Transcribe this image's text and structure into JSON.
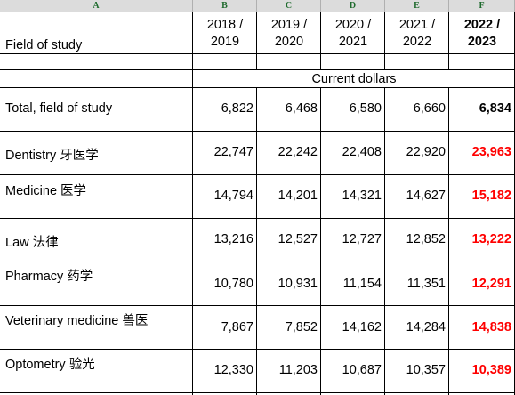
{
  "column_headers": [
    "A",
    "B",
    "C",
    "D",
    "E",
    "F"
  ],
  "field_header": "Field of study",
  "years": [
    {
      "top": "2018 /",
      "bottom": "2019"
    },
    {
      "top": "2019 /",
      "bottom": "2020"
    },
    {
      "top": "2020 /",
      "bottom": "2021"
    },
    {
      "top": "2021 /",
      "bottom": "2022"
    },
    {
      "top": "2022 /",
      "bottom": "2023"
    }
  ],
  "unit_label": "Current dollars",
  "rows": [
    {
      "label": "Total, field of study",
      "values": [
        "6,822",
        "6,468",
        "6,580",
        "6,660",
        "6,834"
      ]
    },
    {
      "label": "Dentistry 牙医学",
      "values": [
        "22,747",
        "22,242",
        "22,408",
        "22,920",
        "23,963"
      ]
    },
    {
      "label": "Medicine 医学",
      "values": [
        "14,794",
        "14,201",
        "14,321",
        "14,627",
        "15,182"
      ]
    },
    {
      "label": "Law 法律",
      "values": [
        "13,216",
        "12,527",
        "12,727",
        "12,852",
        "13,222"
      ]
    },
    {
      "label": "Pharmacy 药学",
      "values": [
        "10,780",
        "10,931",
        "11,154",
        "11,351",
        "12,291"
      ]
    },
    {
      "label": "Veterinary medicine 兽医",
      "values": [
        "7,867",
        "7,852",
        "14,162",
        "14,284",
        "14,838"
      ]
    },
    {
      "label": "Optometry 验光",
      "values": [
        "12,330",
        "11,203",
        "10,687",
        "10,357",
        "10,389"
      ]
    }
  ],
  "highlight_color": "#ff0000",
  "header_letter_color": "#1f6b2e"
}
